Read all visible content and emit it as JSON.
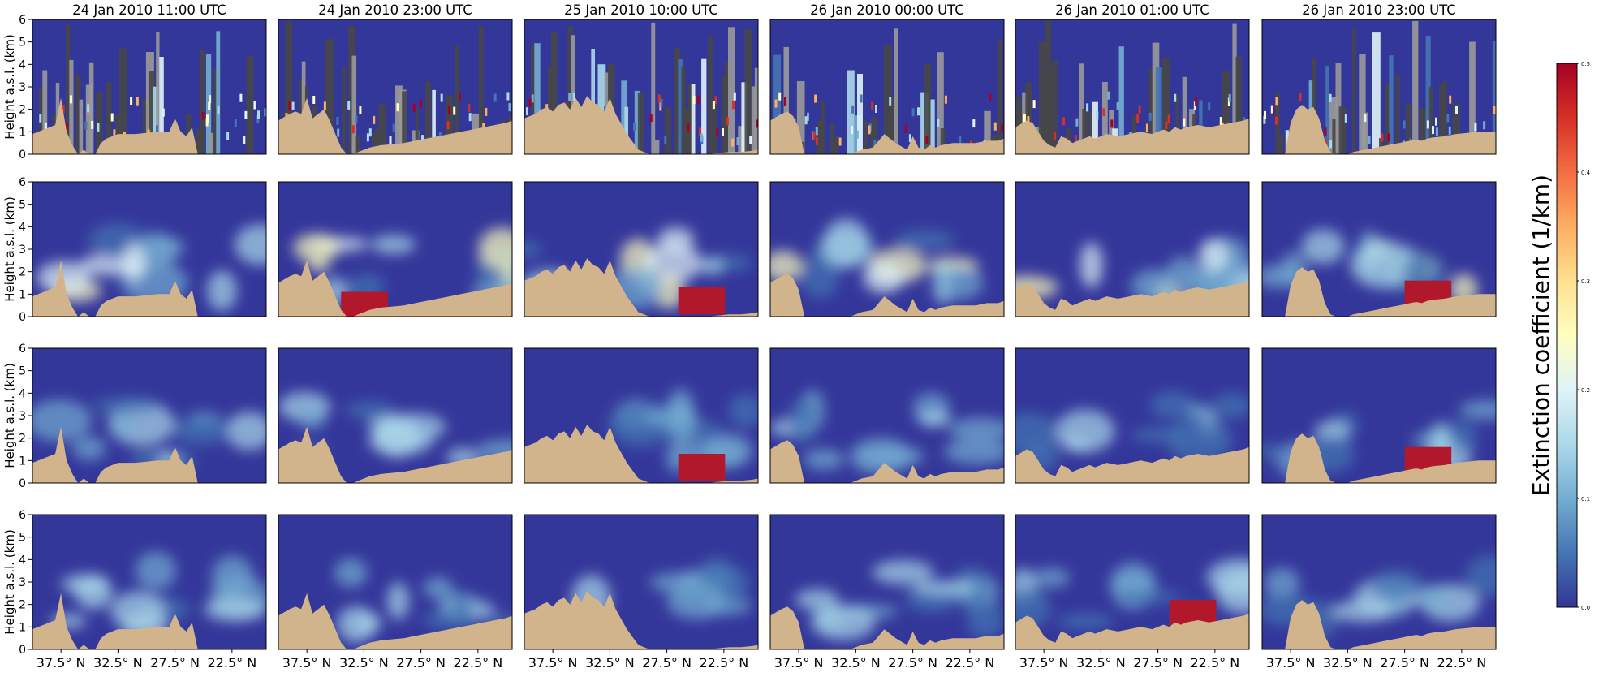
{
  "chart_data": {
    "type": "heatmap",
    "layout": {
      "rows": 4,
      "cols": 6
    },
    "columns": [
      {
        "title": "24 Jan 2010 11:00 UTC",
        "profile": "p1"
      },
      {
        "title": "24 Jan 2010 23:00 UTC",
        "profile": "p2"
      },
      {
        "title": "25 Jan 2010 10:00 UTC",
        "profile": "p3"
      },
      {
        "title": "26 Jan 2010 00:00 UTC",
        "profile": "p4"
      },
      {
        "title": "26 Jan 2010 01:00 UTC",
        "profile": "p5"
      },
      {
        "title": "26 Jan 2010 23:00 UTC",
        "profile": "p6"
      }
    ],
    "ylabel": "Height a.s.l. (km)",
    "ylim": [
      0,
      6
    ],
    "yticks": [
      "0",
      "1",
      "2",
      "3",
      "4",
      "5",
      "6"
    ],
    "xticks": [
      "37.5° N",
      "32.5° N",
      "27.5° N",
      "22.5° N"
    ],
    "xtick_latitudes": [
      37.5,
      32.5,
      27.5,
      22.5
    ],
    "xlim_lat": [
      40.0,
      19.5
    ],
    "colorbar": {
      "label": "Extinction coefficient (1/km)",
      "range": [
        0.0,
        0.5
      ],
      "ticks": [
        "0.0",
        "0.1",
        "0.2",
        "0.3",
        "0.4",
        "0.5"
      ],
      "colormap": "RdYlBu_r",
      "colors": [
        "#313695",
        "#4575b4",
        "#74add1",
        "#abd9e9",
        "#e0f3f8",
        "#ffffbf",
        "#fee090",
        "#fdae61",
        "#f46d43",
        "#d73027",
        "#a50026"
      ]
    },
    "colors": {
      "background": "#34379a",
      "terrain": "#d2b48c",
      "cloud_dark": "#474747",
      "cloud_light": "#9a9a9a"
    },
    "terrain_profiles": {
      "lat": [
        40,
        39,
        38.5,
        38,
        37.5,
        37,
        36.5,
        36,
        35.5,
        35,
        34.5,
        34,
        33.5,
        33,
        32.5,
        32,
        31,
        30,
        29,
        28,
        27.5,
        27,
        26.5,
        26,
        25.5,
        25,
        24,
        23,
        22,
        21,
        20,
        19.5
      ],
      "p1": [
        0.9,
        1.1,
        1.2,
        1.3,
        2.5,
        1.0,
        0.4,
        0.0,
        0.2,
        0.0,
        0.0,
        0.5,
        0.7,
        0.8,
        0.9,
        0.9,
        0.9,
        0.95,
        1.0,
        1.0,
        1.6,
        1.0,
        0.8,
        1.2,
        0.0,
        0.0,
        0.0,
        0.0,
        0.0,
        0.0,
        0.0,
        0.0
      ],
      "p2": [
        1.5,
        1.8,
        1.9,
        1.8,
        2.5,
        1.6,
        1.8,
        2.0,
        1.5,
        0.9,
        0.3,
        0.0,
        0.0,
        0.1,
        0.2,
        0.3,
        0.4,
        0.45,
        0.5,
        0.6,
        0.65,
        0.7,
        0.75,
        0.8,
        0.85,
        0.9,
        1.0,
        1.1,
        1.2,
        1.3,
        1.4,
        1.5
      ],
      "p3": [
        1.6,
        1.8,
        2.0,
        2.1,
        1.9,
        2.2,
        2.3,
        2.0,
        2.5,
        2.1,
        2.6,
        2.3,
        2.2,
        1.9,
        2.5,
        1.8,
        0.9,
        0.2,
        0.0,
        0.0,
        0.0,
        0.0,
        0.0,
        0.0,
        0.0,
        0.0,
        0.0,
        0.05,
        0.1,
        0.1,
        0.15,
        0.2
      ],
      "p4": [
        1.5,
        1.8,
        1.9,
        1.7,
        1.2,
        0.0,
        0.0,
        0.0,
        0.0,
        0.0,
        0.0,
        0.0,
        0.0,
        0.0,
        0.1,
        0.2,
        0.3,
        0.9,
        0.5,
        0.2,
        0.8,
        0.3,
        0.2,
        0.4,
        0.3,
        0.4,
        0.5,
        0.5,
        0.5,
        0.6,
        0.6,
        0.7
      ],
      "p5": [
        1.2,
        1.5,
        1.4,
        1.0,
        0.6,
        0.4,
        0.3,
        0.8,
        0.7,
        0.5,
        0.6,
        0.7,
        0.8,
        0.7,
        0.8,
        0.9,
        0.8,
        0.9,
        1.0,
        0.9,
        1.0,
        1.1,
        1.0,
        1.2,
        1.1,
        1.2,
        1.3,
        1.2,
        1.3,
        1.4,
        1.5,
        1.6
      ],
      "p6": [
        0.0,
        0.0,
        0.0,
        0.0,
        1.4,
        2.0,
        2.2,
        2.0,
        2.1,
        1.6,
        0.6,
        0.1,
        0.0,
        0.0,
        0.0,
        0.1,
        0.2,
        0.3,
        0.4,
        0.5,
        0.55,
        0.6,
        0.65,
        0.6,
        0.7,
        0.75,
        0.8,
        0.9,
        0.95,
        1.0,
        1.0,
        1.0
      ]
    }
  }
}
